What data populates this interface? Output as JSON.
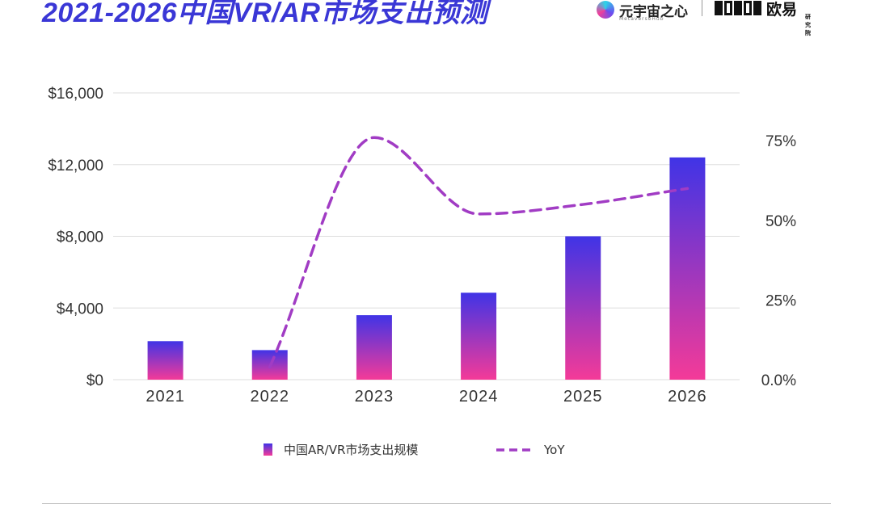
{
  "header": {
    "title": "2021-2026中国VR/AR市场支出预测",
    "logo_left_name": "元宇宙之心",
    "logo_left_sub": "MetaverseHub",
    "logo_right_name": "欧易",
    "logo_right_sub": "研究院"
  },
  "chart_data": {
    "type": "bar",
    "categories": [
      "2021",
      "2022",
      "2023",
      "2024",
      "2025",
      "2026"
    ],
    "series": [
      {
        "name": "中国AR/VR市场支出规模",
        "type": "bar",
        "axis": "left",
        "values": [
          2150,
          1650,
          3600,
          4850,
          8000,
          12400
        ]
      },
      {
        "name": "YoY",
        "type": "line",
        "style": "dashed",
        "axis": "right",
        "values": [
          null,
          4,
          76,
          52,
          55,
          60
        ]
      }
    ],
    "y_left": {
      "ylim": [
        0,
        16000
      ],
      "ticks": [
        0,
        4000,
        8000,
        12000,
        16000
      ],
      "tick_labels": [
        "$0",
        "$4,000",
        "$8,000",
        "$12,000",
        "$16,000"
      ]
    },
    "y_right": {
      "ylim": [
        0,
        90
      ],
      "ticks": [
        0,
        25,
        50,
        75
      ],
      "tick_labels": [
        "0.0%",
        "25%",
        "50%",
        "75%"
      ]
    },
    "xlabel": "",
    "ylabel": "",
    "grid": true,
    "legend_position": "bottom",
    "colors": {
      "bar_top": "#4034e6",
      "bar_bottom": "#f43a98",
      "line": "#a13cc4",
      "grid": "#dddddd",
      "text": "#333333"
    }
  }
}
